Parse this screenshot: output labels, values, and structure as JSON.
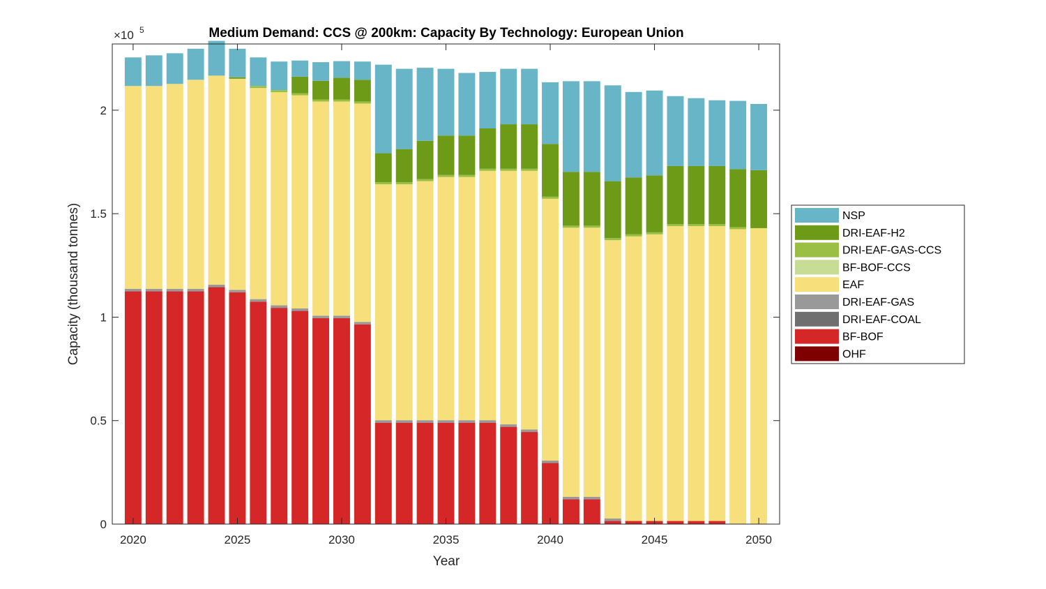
{
  "chart_data": {
    "type": "bar",
    "stacked": true,
    "title": "Medium Demand: CCS @ 200km: Capacity By Technology: European Union",
    "xlabel": "Year",
    "ylabel": "Capacity (thousand tonnes)",
    "y_exponent_label": "×10",
    "y_exponent": "5",
    "ylim": [
      0,
      232000
    ],
    "xlim": [
      2019,
      2051
    ],
    "grid": false,
    "legend_position": "right",
    "x_tick_values": [
      2020,
      2025,
      2030,
      2035,
      2040,
      2045,
      2050
    ],
    "x_tick_labels": [
      "2020",
      "2025",
      "2030",
      "2035",
      "2040",
      "2045",
      "2050"
    ],
    "y_tick_values": [
      0,
      50000,
      100000,
      150000,
      200000
    ],
    "y_tick_labels": [
      "0",
      "0.5",
      "1",
      "1.5",
      "2"
    ],
    "categories": [
      2020,
      2021,
      2022,
      2023,
      2024,
      2025,
      2026,
      2027,
      2028,
      2029,
      2030,
      2031,
      2032,
      2033,
      2034,
      2035,
      2036,
      2037,
      2038,
      2039,
      2040,
      2041,
      2042,
      2043,
      2044,
      2045,
      2046,
      2047,
      2048,
      2049,
      2050
    ],
    "series": [
      {
        "name": "OHF",
        "color": "#7f0000",
        "values": [
          0,
          0,
          0,
          0,
          0,
          0,
          0,
          0,
          0,
          0,
          0,
          0,
          0,
          0,
          0,
          0,
          0,
          0,
          0,
          0,
          0,
          0,
          0,
          0,
          0,
          0,
          0,
          0,
          0,
          0,
          0
        ]
      },
      {
        "name": "BF-BOF",
        "color": "#d62728",
        "values": [
          112500,
          112500,
          112500,
          112500,
          114500,
          112000,
          107500,
          104500,
          103000,
          99500,
          99500,
          96500,
          49000,
          49000,
          49000,
          49000,
          49000,
          49000,
          47000,
          44500,
          29500,
          12000,
          12000,
          1500,
          1500,
          1500,
          1500,
          1500,
          1500,
          0,
          0
        ]
      },
      {
        "name": "DRI-EAF-COAL",
        "color": "#6f6f6f",
        "values": [
          0,
          0,
          0,
          0,
          0,
          0,
          0,
          0,
          0,
          0,
          0,
          0,
          0,
          0,
          0,
          0,
          0,
          0,
          0,
          0,
          0,
          0,
          0,
          0,
          0,
          0,
          0,
          0,
          0,
          0,
          0
        ]
      },
      {
        "name": "DRI-EAF-GAS",
        "color": "#999999",
        "values": [
          1200,
          1200,
          1200,
          1200,
          1200,
          1200,
          1200,
          1200,
          1200,
          1200,
          1200,
          1200,
          1200,
          1200,
          1200,
          1200,
          1200,
          1200,
          1200,
          1200,
          1200,
          1200,
          1200,
          1200,
          0,
          0,
          0,
          0,
          0,
          0,
          0
        ]
      },
      {
        "name": "EAF",
        "color": "#f7df7c",
        "values": [
          98000,
          98000,
          99000,
          101000,
          101000,
          102000,
          102000,
          103000,
          103000,
          103500,
          103500,
          105500,
          114000,
          114000,
          115500,
          117500,
          117500,
          120500,
          122500,
          125000,
          126500,
          130000,
          130000,
          134500,
          137500,
          138500,
          142500,
          142500,
          142500,
          142500,
          143000
        ]
      },
      {
        "name": "BF-BOF-CCS",
        "color": "#c7dd95",
        "values": [
          0,
          0,
          0,
          0,
          0,
          0,
          0,
          0,
          0,
          0,
          0,
          0,
          0,
          0,
          0,
          0,
          0,
          0,
          0,
          0,
          0,
          0,
          0,
          0,
          0,
          0,
          0,
          0,
          0,
          0,
          0
        ]
      },
      {
        "name": "DRI-EAF-GAS-CCS",
        "color": "#9abf44",
        "values": [
          0,
          0,
          0,
          0,
          0,
          0,
          1000,
          1000,
          1000,
          1000,
          1000,
          1000,
          1000,
          1000,
          1000,
          1000,
          1000,
          1000,
          1000,
          1000,
          1000,
          1000,
          1000,
          1000,
          1000,
          1000,
          1000,
          1000,
          1000,
          1000,
          0
        ]
      },
      {
        "name": "DRI-EAF-H2",
        "color": "#6d9a17",
        "values": [
          0,
          0,
          0,
          0,
          0,
          700,
          0,
          0,
          8000,
          9000,
          10500,
          10500,
          14000,
          16000,
          18500,
          19000,
          19000,
          19500,
          21500,
          21500,
          25500,
          26000,
          26000,
          27500,
          27500,
          27500,
          28000,
          28000,
          28000,
          28000,
          28000
        ]
      },
      {
        "name": "NSP",
        "color": "#67b5c7",
        "values": [
          13800,
          14800,
          14800,
          15000,
          16800,
          13800,
          13800,
          13800,
          7800,
          9000,
          8000,
          8800,
          42800,
          38800,
          35300,
          32300,
          30300,
          27300,
          26800,
          26800,
          29800,
          43800,
          43800,
          46300,
          41300,
          41000,
          33800,
          32800,
          31800,
          33000,
          32000
        ]
      }
    ],
    "legend_order": [
      "NSP",
      "DRI-EAF-H2",
      "DRI-EAF-GAS-CCS",
      "BF-BOF-CCS",
      "EAF",
      "DRI-EAF-GAS",
      "DRI-EAF-COAL",
      "BF-BOF",
      "OHF"
    ]
  }
}
